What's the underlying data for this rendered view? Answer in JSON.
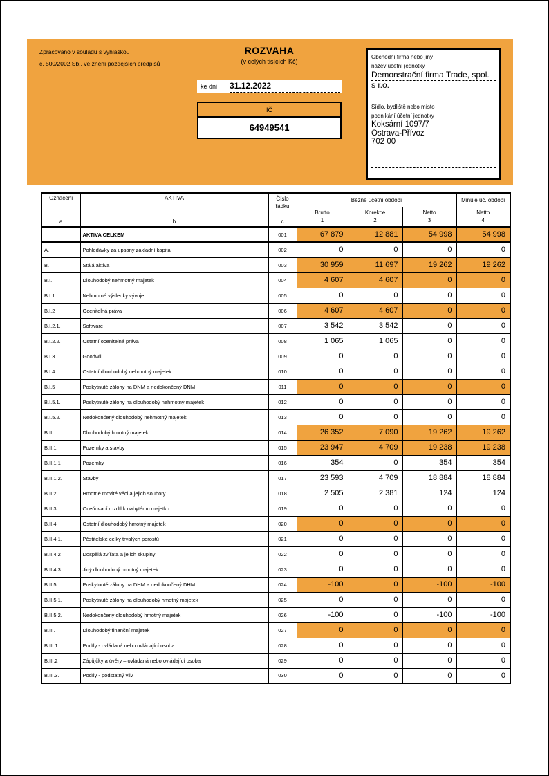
{
  "colors": {
    "accent": "#F0A33F"
  },
  "header": {
    "note_line1": "Zpracováno v souladu s vyhláškou",
    "note_line2": "č. 500/2002 Sb., ve znění pozdějších předpisů",
    "title": "ROZVAHA",
    "subtitle": "(v celých tisících Kč)",
    "date_label": "ke dni",
    "date_value": "31.12.2022",
    "ic_label": "IČ",
    "ic_value": "64949541"
  },
  "company": {
    "name_label_line1": "Obchodní firma nebo jiný",
    "name_label_line2": "název účetní jednotky",
    "name_lines": [
      "Demonstrační firma Trade, spol.",
      "s r.o."
    ],
    "address_label_line1": "Sídlo, bydliště nebo místo",
    "address_label_line2": "podnikání účetní jednotky",
    "address_lines": [
      "Koksární 1097/7",
      "Ostrava-Přívoz",
      "702 00"
    ]
  },
  "table": {
    "headers": {
      "designation": "Označení",
      "designation_letter": "a",
      "aktiva": "AKTIVA",
      "aktiva_letter": "b",
      "line_no_line1": "Číslo",
      "line_no_line2": "řádku",
      "line_no_letter": "c",
      "current_period": "Běžné účetní období",
      "prior_period": "Minulé úč. období",
      "cols": [
        {
          "label": "Brutto",
          "num": "1"
        },
        {
          "label": "Korekce",
          "num": "2"
        },
        {
          "label": "Netto",
          "num": "3"
        },
        {
          "label": "Netto",
          "num": "4"
        }
      ]
    },
    "rows": [
      {
        "code": "",
        "label": "AKTIVA CELKEM",
        "line": "001",
        "values": [
          "67 879",
          "12 881",
          "54 998",
          "54 998"
        ],
        "highlight": true,
        "bold": true
      },
      {
        "code": "A.",
        "label": "Pohledávky za upsaný základní kapitál",
        "line": "002",
        "values": [
          "0",
          "0",
          "0",
          "0"
        ],
        "highlight": false,
        "bold": false
      },
      {
        "code": "B.",
        "label": "Stálá aktiva",
        "line": "003",
        "values": [
          "30 959",
          "11 697",
          "19 262",
          "19 262"
        ],
        "highlight": true,
        "bold": false
      },
      {
        "code": "B.I.",
        "label": "Dlouhodobý nehmotný majetek",
        "line": "004",
        "values": [
          "4 607",
          "4 607",
          "0",
          "0"
        ],
        "highlight": true,
        "bold": false
      },
      {
        "code": "B.I.1",
        "label": "Nehmotné výsledky vývoje",
        "line": "005",
        "values": [
          "0",
          "0",
          "0",
          "0"
        ],
        "highlight": false,
        "bold": false
      },
      {
        "code": "B.I.2",
        "label": "Ocenitelná práva",
        "line": "006",
        "values": [
          "4 607",
          "4 607",
          "0",
          "0"
        ],
        "highlight": true,
        "bold": false
      },
      {
        "code": "B.I.2.1.",
        "label": "Software",
        "line": "007",
        "values": [
          "3 542",
          "3 542",
          "0",
          "0"
        ],
        "highlight": false,
        "bold": false
      },
      {
        "code": "B.I.2.2.",
        "label": "Ostatní ocenitelná práva",
        "line": "008",
        "values": [
          "1 065",
          "1 065",
          "0",
          "0"
        ],
        "highlight": false,
        "bold": false
      },
      {
        "code": "B.I.3",
        "label": "Goodwill",
        "line": "009",
        "values": [
          "0",
          "0",
          "0",
          "0"
        ],
        "highlight": false,
        "bold": false
      },
      {
        "code": "B.I.4",
        "label": "Ostatní dlouhodobý nehmotný majetek",
        "line": "010",
        "values": [
          "0",
          "0",
          "0",
          "0"
        ],
        "highlight": false,
        "bold": false
      },
      {
        "code": "B.I.5",
        "label": "Poskytnuté zálohy na DNM a nedokončený DNM",
        "line": "011",
        "values": [
          "0",
          "0",
          "0",
          "0"
        ],
        "highlight": true,
        "bold": false
      },
      {
        "code": "B.I.5.1.",
        "label": "Poskytnuté zálohy na dlouhodobý nehmotný majetek",
        "line": "012",
        "values": [
          "0",
          "0",
          "0",
          "0"
        ],
        "highlight": false,
        "bold": false
      },
      {
        "code": "B.I.5.2.",
        "label": "Nedokončený dlouhodobý nehmotný majetek",
        "line": "013",
        "values": [
          "0",
          "0",
          "0",
          "0"
        ],
        "highlight": false,
        "bold": false
      },
      {
        "code": "B.II.",
        "label": "Dlouhodobý hmotný majetek",
        "line": "014",
        "values": [
          "26 352",
          "7 090",
          "19 262",
          "19 262"
        ],
        "highlight": true,
        "bold": false
      },
      {
        "code": "B.II.1.",
        "label": "Pozemky a stavby",
        "line": "015",
        "values": [
          "23 947",
          "4 709",
          "19 238",
          "19 238"
        ],
        "highlight": true,
        "bold": false
      },
      {
        "code": "B.II.1.1",
        "label": "Pozemky",
        "line": "016",
        "values": [
          "354",
          "0",
          "354",
          "354"
        ],
        "highlight": false,
        "bold": false
      },
      {
        "code": "B.II.1.2.",
        "label": "Stavby",
        "line": "017",
        "values": [
          "23 593",
          "4 709",
          "18 884",
          "18 884"
        ],
        "highlight": false,
        "bold": false
      },
      {
        "code": "B.II.2",
        "label": "Hmotné movité věci a jejich soubory",
        "line": "018",
        "values": [
          "2 505",
          "2 381",
          "124",
          "124"
        ],
        "highlight": false,
        "bold": false
      },
      {
        "code": "B.II.3.",
        "label": "Oceňovací rozdíl k nabytému majetku",
        "line": "019",
        "values": [
          "0",
          "0",
          "0",
          "0"
        ],
        "highlight": false,
        "bold": false
      },
      {
        "code": "B.II.4",
        "label": "Ostatní dlouhodobý hmotný majetek",
        "line": "020",
        "values": [
          "0",
          "0",
          "0",
          "0"
        ],
        "highlight": true,
        "bold": false
      },
      {
        "code": "B.II.4.1.",
        "label": "Pěstitelské celky trvalých porostů",
        "line": "021",
        "values": [
          "0",
          "0",
          "0",
          "0"
        ],
        "highlight": false,
        "bold": false
      },
      {
        "code": "B.II.4.2",
        "label": "Dospělá zvířata a jejich skupiny",
        "line": "022",
        "values": [
          "0",
          "0",
          "0",
          "0"
        ],
        "highlight": false,
        "bold": false
      },
      {
        "code": "B.II.4.3.",
        "label": "Jiný dlouhodobý hmotný majetek",
        "line": "023",
        "values": [
          "0",
          "0",
          "0",
          "0"
        ],
        "highlight": false,
        "bold": false
      },
      {
        "code": "B.II.5.",
        "label": "Poskytnuté zálohy na DHM a nedokončený DHM",
        "line": "024",
        "values": [
          "-100",
          "0",
          "-100",
          "-100"
        ],
        "highlight": true,
        "bold": false
      },
      {
        "code": "B.II.5.1.",
        "label": "Poskytnuté zálohy na dlouhodobý hmotný majetek",
        "line": "025",
        "values": [
          "0",
          "0",
          "0",
          "0"
        ],
        "highlight": false,
        "bold": false
      },
      {
        "code": "B.II.5.2.",
        "label": "Nedokončený dlouhodobý hmotný majetek",
        "line": "026",
        "values": [
          "-100",
          "0",
          "-100",
          "-100"
        ],
        "highlight": false,
        "bold": false
      },
      {
        "code": "B.III.",
        "label": "Dlouhodobý finanční majetek",
        "line": "027",
        "values": [
          "0",
          "0",
          "0",
          "0"
        ],
        "highlight": true,
        "bold": false
      },
      {
        "code": "B.III.1.",
        "label": "Podíly - ovládaná nebo ovládající osoba",
        "line": "028",
        "values": [
          "0",
          "0",
          "0",
          "0"
        ],
        "highlight": false,
        "bold": false
      },
      {
        "code": "B.III.2",
        "label": "Zápůjčky a úvěry – ovládaná nebo ovládající osoba",
        "line": "029",
        "values": [
          "0",
          "0",
          "0",
          "0"
        ],
        "highlight": false,
        "bold": false
      },
      {
        "code": "B.III.3.",
        "label": "Podíly - podstatný vliv",
        "line": "030",
        "values": [
          "0",
          "0",
          "0",
          "0"
        ],
        "highlight": false,
        "bold": false
      }
    ]
  }
}
